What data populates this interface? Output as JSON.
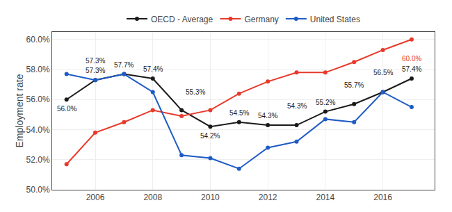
{
  "chart_data": {
    "type": "line",
    "ylabel": "Employment rate",
    "x": [
      2005,
      2006,
      2007,
      2008,
      2009,
      2010,
      2011,
      2012,
      2013,
      2014,
      2015,
      2016,
      2017
    ],
    "series": [
      {
        "name": "OECD - Average",
        "color": "#1a1a1a",
        "values": [
          56.0,
          57.3,
          57.7,
          57.4,
          55.3,
          54.2,
          54.5,
          54.3,
          54.3,
          55.2,
          55.7,
          56.5,
          57.4
        ]
      },
      {
        "name": "Germany",
        "color": "#e8392b",
        "values": [
          51.7,
          53.8,
          54.5,
          55.3,
          54.9,
          55.3,
          56.4,
          57.2,
          57.8,
          57.8,
          58.5,
          59.3,
          60.0
        ]
      },
      {
        "name": "United States",
        "color": "#1f5bc4",
        "values": [
          57.7,
          57.3,
          57.7,
          56.5,
          52.3,
          52.1,
          51.4,
          52.8,
          53.2,
          54.7,
          54.5,
          56.5,
          55.5
        ]
      }
    ],
    "marker": "circle",
    "xlim": [
      2004.5,
      2017.8
    ],
    "xticks": [
      2006,
      2008,
      2010,
      2012,
      2014,
      2016
    ],
    "ylim": [
      50.0,
      60.5
    ],
    "yticks": [
      {
        "value": 50.0,
        "label": "50.0%"
      },
      {
        "value": 52.0,
        "label": "52.0%"
      },
      {
        "value": 54.0,
        "label": "54.0%"
      },
      {
        "value": 56.0,
        "label": "56.0%"
      },
      {
        "value": 58.0,
        "label": "58.0%"
      },
      {
        "value": 60.0,
        "label": "60.0%"
      }
    ],
    "grid": true,
    "legend": "top",
    "annotations": [
      {
        "x": 2005,
        "y": 56.0,
        "text": "56.0%",
        "color": "#1a1a1a"
      },
      {
        "x": 2006,
        "y": 57.3,
        "text": "57.3%",
        "color": "#1a1a1a"
      },
      {
        "x": 2008,
        "y": 57.4,
        "text": "57.4%",
        "color": "#1a1a1a"
      },
      {
        "x": 2009,
        "y": 55.3,
        "text": "55.3%",
        "color": "#1a1a1a"
      },
      {
        "x": 2010,
        "y": 54.2,
        "text": "54.2%",
        "color": "#1a1a1a"
      },
      {
        "x": 2011,
        "y": 54.5,
        "text": "54.5%",
        "color": "#1a1a1a"
      },
      {
        "x": 2012,
        "y": 54.3,
        "text": "54.3%",
        "color": "#1a1a1a"
      },
      {
        "x": 2013,
        "y": 54.3,
        "text": "54.3%",
        "color": "#1a1a1a"
      },
      {
        "x": 2014,
        "y": 55.2,
        "text": "55.2%",
        "color": "#1a1a1a"
      },
      {
        "x": 2015,
        "y": 55.7,
        "text": "55.7%",
        "color": "#1a1a1a"
      },
      {
        "x": 2016,
        "y": 56.5,
        "text": "56.5%",
        "color": "#1a1a1a"
      },
      {
        "x": 2017,
        "y": 57.4,
        "text": "57.4%",
        "color": "#1a1a1a"
      },
      {
        "x": 2006,
        "y": 57.3,
        "text": "57.3%",
        "color": "#1a1a1a"
      },
      {
        "x": 2007,
        "y": 57.7,
        "text": "57.7%",
        "color": "#1a1a1a"
      },
      {
        "x": 2017,
        "y": 60.0,
        "text": "60.0%",
        "color": "#e8392b"
      }
    ]
  }
}
